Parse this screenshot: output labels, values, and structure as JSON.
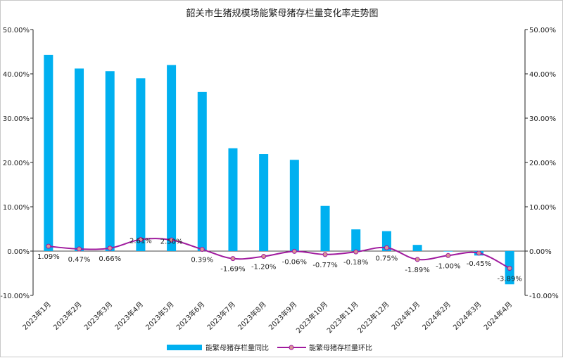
{
  "chart_data": {
    "type": "bar",
    "title": "韶关市生猪规模场能繁母猪存栏量变化率走势图",
    "categories": [
      "2023年1月",
      "2023年2月",
      "2023年3月",
      "2023年4月",
      "2023年5月",
      "2023年6月",
      "2023年7月",
      "2023年8月",
      "2023年9月",
      "2023年10月",
      "2023年11月",
      "2023年12月",
      "2024年1月",
      "2024年2月",
      "2024年3月",
      "2024年4月"
    ],
    "series": [
      {
        "name": "能繁母猪存栏量同比",
        "type": "bar",
        "axis": "left",
        "color": "#00b0f0",
        "values": [
          44.3,
          41.2,
          40.6,
          39.0,
          42.0,
          35.9,
          23.2,
          21.9,
          20.6,
          10.2,
          4.9,
          4.5,
          1.4,
          -0.1,
          -1.0,
          -7.5
        ]
      },
      {
        "name": "能繁母猪存栏量环比",
        "type": "line",
        "axis": "right",
        "color": "#a01a9e",
        "marker_color": "#d99694",
        "values": [
          1.09,
          0.47,
          0.66,
          2.61,
          2.5,
          0.39,
          -1.69,
          -1.2,
          -0.06,
          -0.77,
          -0.18,
          0.75,
          -1.89,
          -1.0,
          -0.45,
          -3.89
        ],
        "labels": [
          "1.09%",
          "0.47%",
          "0.66%",
          "2.61%",
          "2.50%",
          "0.39%",
          "-1.69%",
          "-1.20%",
          "-0.06%",
          "-0.77%",
          "-0.18%",
          "0.75%",
          "-1.89%",
          "-1.00%",
          "-0.45%",
          "-3.89%"
        ]
      }
    ],
    "ylim": [
      -10,
      50
    ],
    "y_ticks": [
      "-10.00%",
      "0.00%",
      "10.00%",
      "20.00%",
      "30.00%",
      "40.00%",
      "50.00%"
    ],
    "y2lim": [
      -10,
      50
    ],
    "y2_ticks": [
      "-10.00%",
      "0.00%",
      "10.00%",
      "20.00%",
      "30.00%",
      "40.00%",
      "50.00%"
    ],
    "legend_position": "bottom",
    "grid": false
  }
}
